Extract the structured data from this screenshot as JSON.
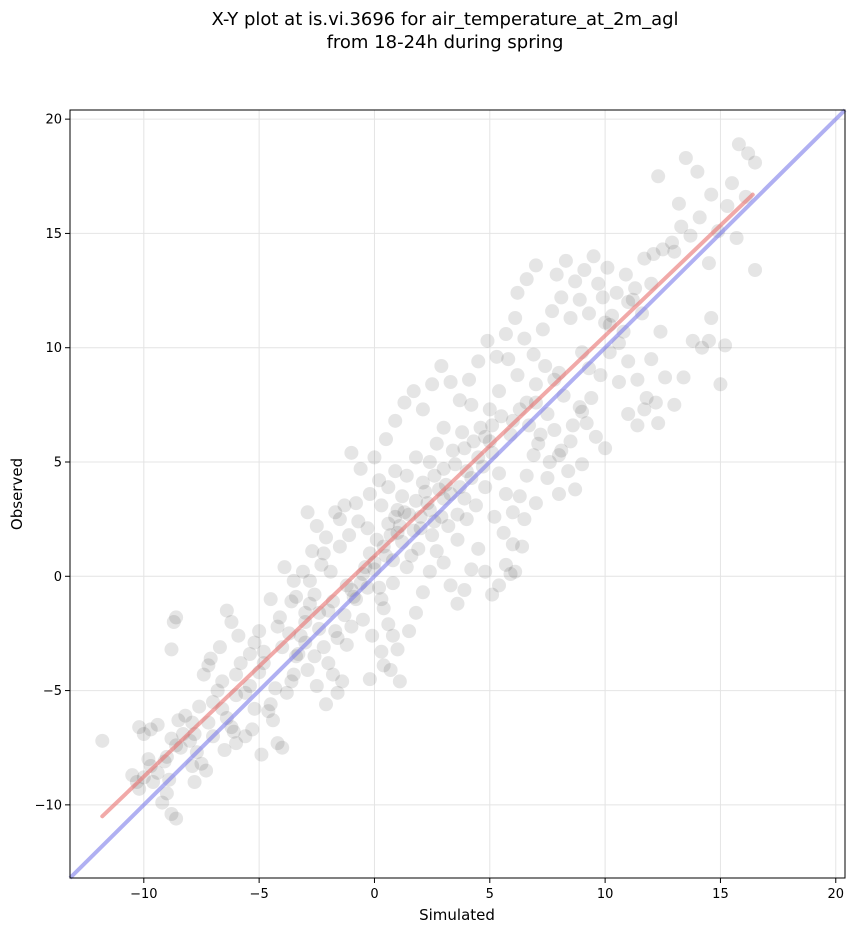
{
  "chart_data": {
    "type": "scatter",
    "title_line1": "X-Y plot at is.vi.3696 for air_temperature_at_2m_agl",
    "title_line2": "from 18-24h during spring",
    "xlabel": "Simulated",
    "ylabel": "Observed",
    "xlim": [
      -13.2,
      20.4
    ],
    "ylim": [
      -13.2,
      20.4
    ],
    "xticks": [
      -10,
      -5,
      0,
      5,
      10,
      15,
      20
    ],
    "yticks": [
      -10,
      -5,
      0,
      5,
      10,
      15,
      20
    ],
    "xtick_labels": [
      "−10",
      "−5",
      "0",
      "5",
      "10",
      "15",
      "20"
    ],
    "ytick_labels": [
      "−10",
      "−5",
      "0",
      "5",
      "10",
      "15",
      "20"
    ],
    "grid": true,
    "point_color": "#000000",
    "points": [
      [
        -11.8,
        -7.2
      ],
      [
        -10.2,
        -6.6
      ],
      [
        -10.0,
        -6.9
      ],
      [
        -9.7,
        -6.7
      ],
      [
        -9.4,
        -6.5
      ],
      [
        -10.5,
        -8.7
      ],
      [
        -10.3,
        -9.0
      ],
      [
        -10.0,
        -8.8
      ],
      [
        -9.7,
        -8.3
      ],
      [
        -9.4,
        -8.6
      ],
      [
        -9.1,
        -8.1
      ],
      [
        -9.0,
        -9.5
      ],
      [
        -9.2,
        -9.9
      ],
      [
        -8.8,
        -10.4
      ],
      [
        -8.6,
        -10.6
      ],
      [
        -8.8,
        -7.1
      ],
      [
        -8.6,
        -7.4
      ],
      [
        -8.3,
        -6.9
      ],
      [
        -8.0,
        -7.2
      ],
      [
        -7.7,
        -7.7
      ],
      [
        -7.5,
        -8.2
      ],
      [
        -7.3,
        -8.5
      ],
      [
        -7.8,
        -9.0
      ],
      [
        -8.5,
        -6.3
      ],
      [
        -8.2,
        -6.1
      ],
      [
        -8.7,
        -2.0
      ],
      [
        -8.8,
        -3.2
      ],
      [
        -8.6,
        -1.8
      ],
      [
        -7.4,
        -4.3
      ],
      [
        -7.2,
        -3.9
      ],
      [
        -7.0,
        -5.5
      ],
      [
        -6.8,
        -5.0
      ],
      [
        -6.6,
        -4.6
      ],
      [
        -6.4,
        -6.2
      ],
      [
        -6.2,
        -6.6
      ],
      [
        -6.0,
        -4.3
      ],
      [
        -5.8,
        -3.8
      ],
      [
        -5.6,
        -5.1
      ],
      [
        -5.4,
        -4.8
      ],
      [
        -5.2,
        -2.9
      ],
      [
        -5.0,
        -2.4
      ],
      [
        -4.8,
        -3.3
      ],
      [
        -4.6,
        -5.9
      ],
      [
        -4.4,
        -6.3
      ],
      [
        -4.2,
        -7.3
      ],
      [
        -4.0,
        -7.5
      ],
      [
        -4.9,
        -7.8
      ],
      [
        -4.5,
        -5.6
      ],
      [
        -6.4,
        -1.5
      ],
      [
        -6.2,
        -2.0
      ],
      [
        -5.9,
        -2.6
      ],
      [
        -6.7,
        -3.1
      ],
      [
        -7.1,
        -3.6
      ],
      [
        -7.6,
        -5.7
      ],
      [
        -7.9,
        -6.4
      ],
      [
        -5.6,
        -7.0
      ],
      [
        -5.3,
        -6.7
      ],
      [
        -6.5,
        -7.6
      ],
      [
        -6.0,
        -7.3
      ],
      [
        -3.8,
        -5.1
      ],
      [
        -3.6,
        -4.6
      ],
      [
        -3.4,
        -3.5
      ],
      [
        -3.2,
        -2.6
      ],
      [
        -3.0,
        -2.0
      ],
      [
        -2.8,
        -1.2
      ],
      [
        -2.6,
        -0.8
      ],
      [
        -2.4,
        -1.6
      ],
      [
        -2.2,
        -3.1
      ],
      [
        -2.0,
        -3.8
      ],
      [
        -1.8,
        -4.3
      ],
      [
        -1.6,
        -5.1
      ],
      [
        -1.4,
        -4.6
      ],
      [
        -1.2,
        -3.0
      ],
      [
        -1.0,
        -2.2
      ],
      [
        -0.8,
        -1.0
      ],
      [
        -0.6,
        -0.3
      ],
      [
        -0.4,
        0.4
      ],
      [
        -0.2,
        1.0
      ],
      [
        0.0,
        0.6
      ],
      [
        0.2,
        -0.5
      ],
      [
        0.4,
        -1.4
      ],
      [
        0.6,
        -2.1
      ],
      [
        0.8,
        -2.6
      ],
      [
        1.0,
        -3.2
      ],
      [
        -3.9,
        0.4
      ],
      [
        -3.5,
        -0.2
      ],
      [
        -3.1,
        0.2
      ],
      [
        -2.7,
        1.1
      ],
      [
        -2.3,
        0.5
      ],
      [
        -1.9,
        0.2
      ],
      [
        -1.5,
        1.3
      ],
      [
        -1.1,
        1.8
      ],
      [
        -0.7,
        2.4
      ],
      [
        -0.3,
        2.1
      ],
      [
        0.1,
        1.6
      ],
      [
        -2.9,
        2.8
      ],
      [
        -2.5,
        2.2
      ],
      [
        -2.1,
        1.7
      ],
      [
        -1.7,
        2.8
      ],
      [
        -1.3,
        3.1
      ],
      [
        -4.5,
        -1.0
      ],
      [
        -4.1,
        -1.8
      ],
      [
        -3.7,
        -2.5
      ],
      [
        -3.3,
        -3.4
      ],
      [
        -2.9,
        -4.1
      ],
      [
        -2.5,
        -4.8
      ],
      [
        -2.1,
        -5.6
      ],
      [
        -1.7,
        -2.4
      ],
      [
        -1.3,
        -1.7
      ],
      [
        -0.9,
        -0.9
      ],
      [
        -0.5,
        -1.9
      ],
      [
        -0.1,
        -2.6
      ],
      [
        0.3,
        -3.3
      ],
      [
        0.7,
        -4.1
      ],
      [
        1.1,
        -4.6
      ],
      [
        -0.2,
        -4.5
      ],
      [
        0.4,
        -3.9
      ],
      [
        1.5,
        -2.4
      ],
      [
        1.8,
        -1.6
      ],
      [
        2.1,
        -0.7
      ],
      [
        2.4,
        0.2
      ],
      [
        2.7,
        1.1
      ],
      [
        3.0,
        0.6
      ],
      [
        3.3,
        -0.4
      ],
      [
        3.6,
        -1.2
      ],
      [
        3.9,
        -0.6
      ],
      [
        4.2,
        0.3
      ],
      [
        4.5,
        1.2
      ],
      [
        4.8,
        0.2
      ],
      [
        5.1,
        -0.8
      ],
      [
        5.4,
        -0.4
      ],
      [
        5.7,
        0.5
      ],
      [
        5.9,
        0.1
      ],
      [
        6.1,
        0.2
      ],
      [
        6.4,
        1.3
      ],
      [
        0.3,
        3.1
      ],
      [
        0.6,
        3.9
      ],
      [
        0.9,
        4.6
      ],
      [
        1.2,
        3.5
      ],
      [
        1.5,
        2.7
      ],
      [
        1.8,
        3.3
      ],
      [
        2.1,
        4.1
      ],
      [
        2.4,
        5.0
      ],
      [
        2.7,
        5.8
      ],
      [
        3.0,
        4.7
      ],
      [
        3.3,
        3.6
      ],
      [
        3.6,
        2.7
      ],
      [
        3.9,
        3.4
      ],
      [
        4.2,
        4.3
      ],
      [
        4.5,
        5.2
      ],
      [
        4.8,
        6.1
      ],
      [
        5.1,
        5.4
      ],
      [
        5.4,
        4.5
      ],
      [
        5.7,
        3.6
      ],
      [
        6.0,
        2.8
      ],
      [
        6.3,
        3.5
      ],
      [
        6.6,
        4.4
      ],
      [
        6.9,
        5.3
      ],
      [
        7.2,
        6.2
      ],
      [
        7.5,
        7.1
      ],
      [
        7.8,
        6.4
      ],
      [
        8.1,
        5.5
      ],
      [
        8.4,
        4.6
      ],
      [
        8.7,
        3.8
      ],
      [
        9.0,
        4.9
      ],
      [
        0.5,
        6.0
      ],
      [
        0.9,
        6.8
      ],
      [
        1.3,
        7.6
      ],
      [
        1.7,
        8.1
      ],
      [
        2.1,
        7.3
      ],
      [
        2.5,
        8.4
      ],
      [
        2.9,
        9.2
      ],
      [
        3.3,
        8.5
      ],
      [
        3.7,
        7.7
      ],
      [
        4.1,
        8.6
      ],
      [
        4.5,
        9.4
      ],
      [
        4.9,
        10.3
      ],
      [
        5.3,
        9.6
      ],
      [
        5.7,
        10.6
      ],
      [
        6.1,
        11.3
      ],
      [
        6.5,
        10.4
      ],
      [
        6.9,
        9.7
      ],
      [
        7.3,
        10.8
      ],
      [
        7.7,
        11.6
      ],
      [
        8.1,
        12.2
      ],
      [
        8.5,
        11.3
      ],
      [
        8.9,
        12.1
      ],
      [
        9.3,
        11.5
      ],
      [
        9.7,
        12.8
      ],
      [
        10.1,
        13.5
      ],
      [
        10.5,
        12.4
      ],
      [
        10.9,
        13.2
      ],
      [
        11.3,
        12.6
      ],
      [
        11.7,
        13.9
      ],
      [
        12.1,
        14.1
      ],
      [
        7.0,
        13.6
      ],
      [
        6.6,
        13.0
      ],
      [
        6.2,
        12.4
      ],
      [
        7.9,
        13.2
      ],
      [
        8.3,
        13.8
      ],
      [
        8.7,
        12.9
      ],
      [
        9.1,
        13.4
      ],
      [
        9.5,
        14.0
      ],
      [
        9.9,
        12.2
      ],
      [
        10.3,
        11.4
      ],
      [
        12.5,
        14.3
      ],
      [
        12.9,
        14.6
      ],
      [
        13.3,
        15.3
      ],
      [
        13.7,
        14.9
      ],
      [
        14.1,
        15.7
      ],
      [
        14.5,
        13.7
      ],
      [
        14.9,
        15.1
      ],
      [
        15.3,
        16.2
      ],
      [
        15.7,
        14.8
      ],
      [
        16.1,
        16.6
      ],
      [
        16.5,
        13.4
      ],
      [
        13.5,
        18.3
      ],
      [
        14.0,
        17.7
      ],
      [
        15.8,
        18.9
      ],
      [
        16.2,
        18.5
      ],
      [
        16.5,
        18.1
      ],
      [
        12.3,
        17.5
      ],
      [
        15.5,
        17.2
      ],
      [
        14.6,
        16.7
      ],
      [
        13.2,
        16.3
      ],
      [
        10.2,
        11.0
      ],
      [
        10.6,
        10.2
      ],
      [
        11.0,
        9.4
      ],
      [
        11.4,
        8.6
      ],
      [
        11.8,
        7.8
      ],
      [
        12.2,
        7.6
      ],
      [
        12.6,
        8.7
      ],
      [
        13.0,
        7.5
      ],
      [
        13.4,
        8.7
      ],
      [
        13.8,
        10.3
      ],
      [
        14.2,
        10.0
      ],
      [
        14.6,
        11.3
      ],
      [
        15.0,
        8.4
      ],
      [
        15.2,
        10.1
      ],
      [
        14.5,
        10.3
      ],
      [
        12.4,
        10.7
      ],
      [
        12.0,
        9.5
      ],
      [
        11.6,
        11.5
      ],
      [
        11.2,
        12.1
      ],
      [
        10.8,
        10.7
      ],
      [
        9.4,
        7.8
      ],
      [
        9.0,
        7.2
      ],
      [
        8.6,
        6.6
      ],
      [
        8.2,
        7.9
      ],
      [
        7.8,
        8.6
      ],
      [
        9.8,
        8.8
      ],
      [
        10.2,
        9.8
      ],
      [
        10.6,
        8.5
      ],
      [
        11.0,
        7.1
      ],
      [
        11.4,
        6.6
      ],
      [
        9.6,
        6.1
      ],
      [
        10.0,
        5.6
      ],
      [
        9.2,
        6.7
      ],
      [
        12.3,
        6.7
      ],
      [
        11.7,
        7.3
      ],
      [
        7.4,
        9.2
      ],
      [
        7.0,
        8.4
      ],
      [
        6.6,
        7.6
      ],
      [
        6.2,
        8.8
      ],
      [
        5.8,
        9.5
      ],
      [
        5.4,
        8.1
      ],
      [
        5.0,
        7.3
      ],
      [
        4.6,
        6.5
      ],
      [
        4.2,
        7.5
      ],
      [
        3.8,
        6.3
      ],
      [
        3.4,
        5.5
      ],
      [
        3.0,
        6.5
      ],
      [
        2.6,
        4.4
      ],
      [
        2.2,
        3.7
      ],
      [
        1.8,
        5.2
      ],
      [
        1.4,
        4.4
      ],
      [
        1.0,
        2.9
      ],
      [
        0.6,
        2.3
      ],
      [
        0.2,
        4.2
      ],
      [
        -0.2,
        3.6
      ],
      [
        -0.6,
        4.7
      ],
      [
        -1.0,
        5.4
      ],
      [
        0.0,
        5.2
      ],
      [
        0.4,
        1.3
      ],
      [
        0.8,
        0.7
      ],
      [
        1.2,
        1.5
      ],
      [
        1.6,
        0.9
      ],
      [
        2.0,
        2.1
      ],
      [
        2.4,
        2.9
      ],
      [
        2.8,
        3.8
      ],
      [
        3.2,
        2.2
      ],
      [
        3.6,
        1.6
      ],
      [
        4.0,
        2.5
      ],
      [
        4.4,
        3.1
      ],
      [
        4.8,
        3.9
      ],
      [
        5.2,
        2.6
      ],
      [
        5.6,
        1.9
      ],
      [
        6.0,
        1.4
      ],
      [
        6.5,
        2.5
      ],
      [
        7.0,
        3.2
      ],
      [
        7.5,
        4.3
      ],
      [
        8.0,
        3.6
      ],
      [
        8.5,
        5.9
      ],
      [
        8.9,
        7.4
      ],
      [
        9.3,
        9.1
      ],
      [
        -0.5,
        0.1
      ],
      [
        -1.2,
        -0.4
      ],
      [
        -1.8,
        -1.1
      ],
      [
        -2.4,
        -2.3
      ],
      [
        -3.0,
        -1.6
      ],
      [
        -3.6,
        -1.1
      ],
      [
        -4.2,
        -2.2
      ],
      [
        -4.8,
        -3.8
      ],
      [
        -5.4,
        -3.4
      ],
      [
        -6.0,
        -5.2
      ],
      [
        -6.6,
        -5.8
      ],
      [
        -7.2,
        -6.4
      ],
      [
        -7.8,
        -6.9
      ],
      [
        -8.4,
        -7.5
      ],
      [
        -9.0,
        -7.9
      ],
      [
        -9.6,
        -9.0
      ],
      [
        -10.2,
        -9.3
      ],
      [
        -5.0,
        -4.2
      ],
      [
        -4.0,
        -3.1
      ],
      [
        -3.0,
        -2.9
      ],
      [
        -2.0,
        -1.5
      ],
      [
        -1.0,
        -0.6
      ],
      [
        0.0,
        0.3
      ],
      [
        1.0,
        1.9
      ],
      [
        2.0,
        2.6
      ],
      [
        3.0,
        3.4
      ],
      [
        4.0,
        4.6
      ],
      [
        5.0,
        5.9
      ],
      [
        6.0,
        6.8
      ],
      [
        7.0,
        7.6
      ],
      [
        8.0,
        8.9
      ],
      [
        9.0,
        9.8
      ],
      [
        10.0,
        11.1
      ],
      [
        11.0,
        12.0
      ],
      [
        12.0,
        12.8
      ],
      [
        13.0,
        14.2
      ],
      [
        0.9,
        2.6
      ],
      [
        1.1,
        2.2
      ],
      [
        0.7,
        1.8
      ],
      [
        1.3,
        2.8
      ],
      [
        2.3,
        3.2
      ],
      [
        2.6,
        2.4
      ],
      [
        3.1,
        4.0
      ],
      [
        3.5,
        4.9
      ],
      [
        3.9,
        5.6
      ],
      [
        4.3,
        5.9
      ],
      [
        4.7,
        4.8
      ],
      [
        5.1,
        6.6
      ],
      [
        5.5,
        7.0
      ],
      [
        5.9,
        6.2
      ],
      [
        6.3,
        7.3
      ],
      [
        6.7,
        6.6
      ],
      [
        7.1,
        5.8
      ],
      [
        7.6,
        5.0
      ],
      [
        8.0,
        5.3
      ],
      [
        -0.8,
        3.2
      ],
      [
        -1.5,
        2.5
      ],
      [
        -2.2,
        1.0
      ],
      [
        -2.8,
        -0.2
      ],
      [
        -3.4,
        -0.9
      ],
      [
        0.3,
        -1.0
      ],
      [
        0.8,
        -0.3
      ],
      [
        1.4,
        0.4
      ],
      [
        1.9,
        1.2
      ],
      [
        2.5,
        1.8
      ],
      [
        -0.3,
        -0.5
      ],
      [
        0.5,
        0.9
      ],
      [
        1.7,
        2.0
      ],
      [
        2.9,
        2.6
      ],
      [
        3.7,
        3.9
      ],
      [
        -1.6,
        -2.7
      ],
      [
        -2.6,
        -3.5
      ],
      [
        -3.5,
        -4.3
      ],
      [
        -4.3,
        -4.9
      ],
      [
        -5.2,
        -5.8
      ],
      [
        -6.1,
        -6.8
      ],
      [
        -7.0,
        -7.0
      ],
      [
        -7.9,
        -8.3
      ],
      [
        -8.9,
        -8.9
      ],
      [
        -9.8,
        -8.0
      ]
    ],
    "fit_line": {
      "color": "#e8706e",
      "x": [
        -11.8,
        16.4
      ],
      "y": [
        -10.5,
        16.7
      ]
    },
    "identity_line": {
      "color": "#7b7bea",
      "x": [
        -13.2,
        20.4
      ],
      "y": [
        -13.2,
        20.4
      ]
    }
  }
}
